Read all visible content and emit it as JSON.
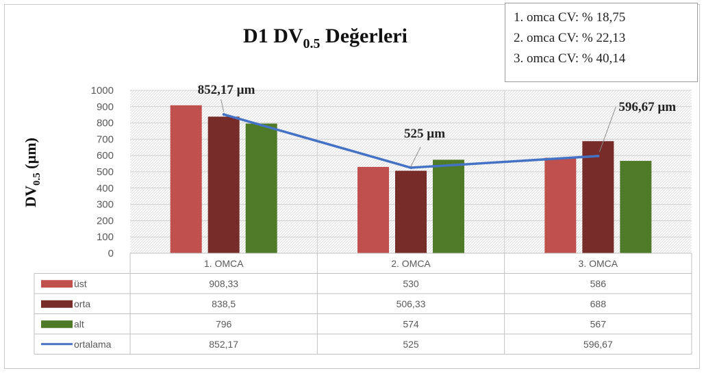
{
  "chart_data": {
    "type": "bar",
    "title_main": "D1  DV",
    "title_sub": "0.5",
    "title_tail": " Değerleri",
    "ylabel_main": "DV",
    "ylabel_sub": "0.5",
    "ylabel_tail": " (µm)",
    "ylim": [
      0,
      1000
    ],
    "yticks": [
      "0",
      "100",
      "200",
      "300",
      "400",
      "500",
      "600",
      "700",
      "800",
      "900",
      "1000"
    ],
    "categories": [
      "1. OMCA",
      "2. OMCA",
      "3. OMCA"
    ],
    "series": [
      {
        "name": "üst",
        "values": [
          908.33,
          530,
          586
        ],
        "labels": [
          "908,33",
          "530",
          "586"
        ],
        "color": "#c0504d",
        "kind": "bar"
      },
      {
        "name": "orta",
        "values": [
          838.5,
          506.33,
          688
        ],
        "labels": [
          "838,5",
          "506,33",
          "688"
        ],
        "color": "#772c2a",
        "kind": "bar"
      },
      {
        "name": "alt",
        "values": [
          796,
          574,
          567
        ],
        "labels": [
          "796",
          "574",
          "567"
        ],
        "color": "#4f7a28",
        "kind": "bar"
      },
      {
        "name": "ortalama",
        "values": [
          852.17,
          525,
          596.67
        ],
        "labels": [
          "852,17",
          "525",
          "596,67"
        ],
        "color": "#4472c4",
        "kind": "line"
      }
    ],
    "annotations": [
      "852,17 µm",
      "525 µm",
      "596,67 µm"
    ],
    "grid": true,
    "legend": "data-table"
  },
  "cv_box": [
    "1. omca CV: % 18,75",
    "2. omca CV: % 22,13",
    "3. omca CV: % 40,14"
  ]
}
